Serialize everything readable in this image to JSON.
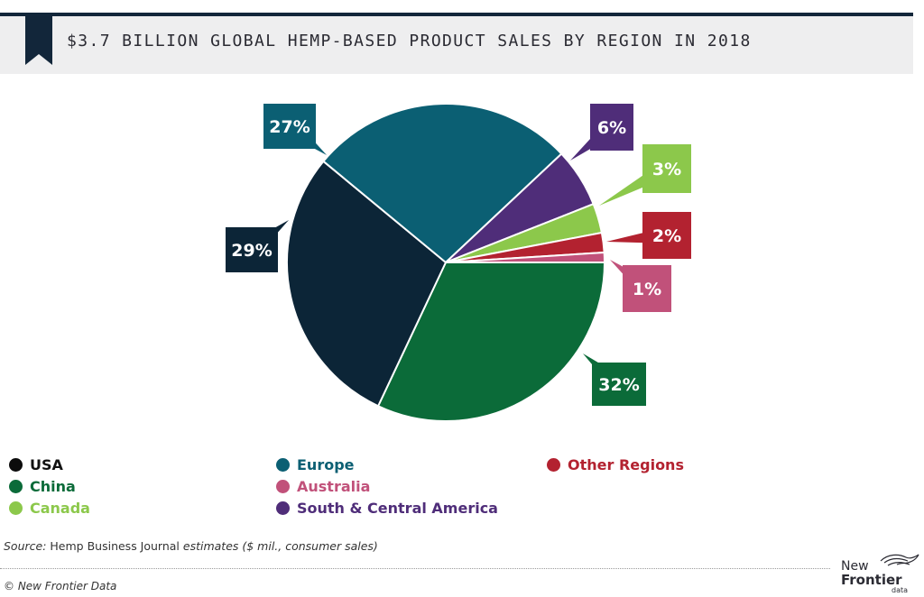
{
  "header": {
    "title": "$3.7 BILLION GLOBAL HEMP-BASED PRODUCT SALES BY REGION IN 2018"
  },
  "chart_data": {
    "type": "pie",
    "title": "$3.7 BILLION GLOBAL HEMP-BASED PRODUCT SALES BY REGION IN 2018",
    "unit": "%",
    "slices": [
      {
        "name": "China",
        "value": 32,
        "label": "32%",
        "color": "#0b6b39"
      },
      {
        "name": "USA",
        "value": 29,
        "label": "29%",
        "color": "#0c2537"
      },
      {
        "name": "Europe",
        "value": 27,
        "label": "27%",
        "color": "#0b5f73"
      },
      {
        "name": "South & Central America",
        "value": 6,
        "label": "6%",
        "color": "#4f2d79"
      },
      {
        "name": "Canada",
        "value": 3,
        "label": "3%",
        "color": "#8cc84b"
      },
      {
        "name": "Other Regions",
        "value": 2,
        "label": "2%",
        "color": "#b32230"
      },
      {
        "name": "Australia",
        "value": 1,
        "label": "1%",
        "color": "#c1517a"
      }
    ]
  },
  "legend": {
    "items": [
      {
        "label": "USA",
        "color": "#0c0c0c",
        "text_color": "#111111"
      },
      {
        "label": "China",
        "color": "#0b6b39",
        "text_color": "#0b6b39"
      },
      {
        "label": "Canada",
        "color": "#8cc84b",
        "text_color": "#8cc84b"
      },
      {
        "label": "Europe",
        "color": "#0b5f73",
        "text_color": "#0b5f73"
      },
      {
        "label": "Australia",
        "color": "#c1517a",
        "text_color": "#c1517a"
      },
      {
        "label": "South & Central America",
        "color": "#4f2d79",
        "text_color": "#4f2d79"
      },
      {
        "label": "Other Regions",
        "color": "#b32230",
        "text_color": "#b32230"
      }
    ]
  },
  "footer": {
    "source_label": "Source: ",
    "source_publisher": "Hemp Business Journal ",
    "source_note": "estimates ($ mil., consumer sales)",
    "copyright": "© New Frontier Data",
    "logo_line1": "New",
    "logo_line2": "Frontier",
    "logo_line3": "data"
  }
}
